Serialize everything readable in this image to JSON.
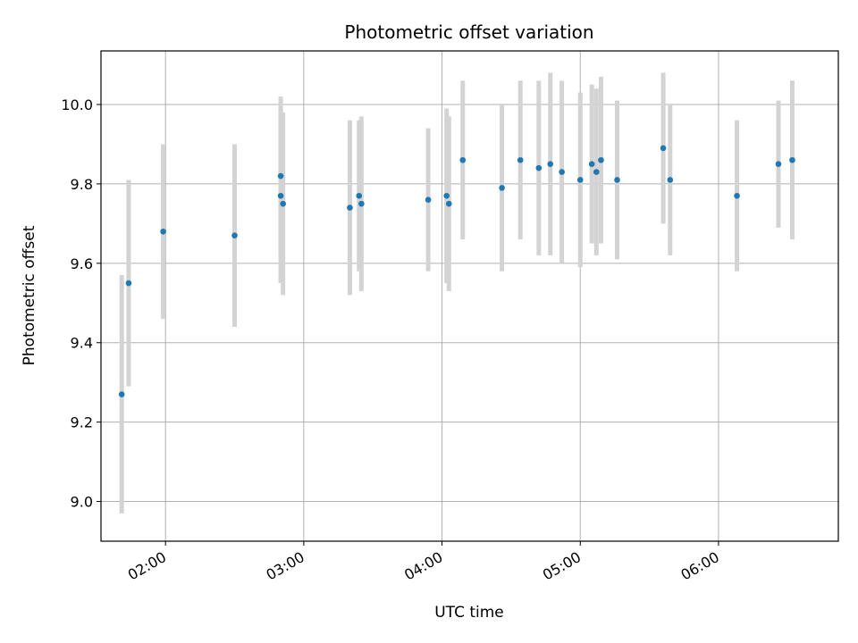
{
  "chart_data": {
    "type": "scatter",
    "title": "Photometric offset variation",
    "xlabel": "UTC time",
    "ylabel": "Photometric offset",
    "xlim": [
      "01:32",
      "06:52"
    ],
    "ylim": [
      8.9,
      10.135
    ],
    "grid": true,
    "x_ticks": [
      "02:00",
      "03:00",
      "04:00",
      "05:00",
      "06:00"
    ],
    "y_ticks": [
      9.0,
      9.2,
      9.4,
      9.6,
      9.8,
      10.0
    ],
    "y_tick_labels": [
      "9.0",
      "9.2",
      "9.4",
      "9.6",
      "9.8",
      "10.0"
    ],
    "point_color": "#1f77b4",
    "errorbar_color": "#d3d3d3",
    "points": [
      {
        "x": "01:41",
        "y": 9.27,
        "err": 0.3
      },
      {
        "x": "01:44",
        "y": 9.55,
        "err": 0.26
      },
      {
        "x": "01:59",
        "y": 9.68,
        "err": 0.22
      },
      {
        "x": "02:30",
        "y": 9.67,
        "err": 0.23
      },
      {
        "x": "02:50",
        "y": 9.82,
        "err": 0.2
      },
      {
        "x": "02:50",
        "y": 9.77,
        "err": 0.22
      },
      {
        "x": "02:51",
        "y": 9.75,
        "err": 0.23
      },
      {
        "x": "03:20",
        "y": 9.74,
        "err": 0.22
      },
      {
        "x": "03:24",
        "y": 9.77,
        "err": 0.19
      },
      {
        "x": "03:25",
        "y": 9.75,
        "err": 0.22
      },
      {
        "x": "03:54",
        "y": 9.76,
        "err": 0.18
      },
      {
        "x": "04:02",
        "y": 9.77,
        "err": 0.22
      },
      {
        "x": "04:03",
        "y": 9.75,
        "err": 0.22
      },
      {
        "x": "04:09",
        "y": 9.86,
        "err": 0.2
      },
      {
        "x": "04:26",
        "y": 9.79,
        "err": 0.21
      },
      {
        "x": "04:34",
        "y": 9.86,
        "err": 0.2
      },
      {
        "x": "04:42",
        "y": 9.84,
        "err": 0.22
      },
      {
        "x": "04:47",
        "y": 9.85,
        "err": 0.23
      },
      {
        "x": "04:52",
        "y": 9.83,
        "err": 0.23
      },
      {
        "x": "05:00",
        "y": 9.81,
        "err": 0.22
      },
      {
        "x": "05:05",
        "y": 9.85,
        "err": 0.2
      },
      {
        "x": "05:07",
        "y": 9.83,
        "err": 0.21
      },
      {
        "x": "05:09",
        "y": 9.86,
        "err": 0.21
      },
      {
        "x": "05:16",
        "y": 9.81,
        "err": 0.2
      },
      {
        "x": "05:36",
        "y": 9.89,
        "err": 0.19
      },
      {
        "x": "05:39",
        "y": 9.81,
        "err": 0.19
      },
      {
        "x": "06:08",
        "y": 9.77,
        "err": 0.19
      },
      {
        "x": "06:26",
        "y": 9.85,
        "err": 0.16
      },
      {
        "x": "06:32",
        "y": 9.86,
        "err": 0.2
      }
    ]
  }
}
